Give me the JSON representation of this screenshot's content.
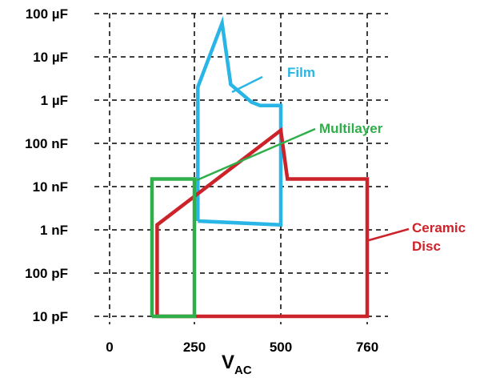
{
  "chart_data": {
    "type": "area",
    "title": "",
    "xlabel": "V",
    "xlabel_subscript": "AC",
    "ylabel": "",
    "y_scale": "log",
    "grid": true,
    "x_ticks": [
      {
        "value": 0,
        "label": "0"
      },
      {
        "value": 250,
        "label": "250"
      },
      {
        "value": 500,
        "label": "500"
      },
      {
        "value": 760,
        "label": "760"
      }
    ],
    "y_ticks": [
      {
        "value": 1e-11,
        "label": "10 pF"
      },
      {
        "value": 1e-10,
        "label": "100 pF"
      },
      {
        "value": 1e-09,
        "label": "1 nF"
      },
      {
        "value": 1e-08,
        "label": "10 nF"
      },
      {
        "value": 1e-07,
        "label": "100 nF"
      },
      {
        "value": 1e-06,
        "label": "1 µF"
      },
      {
        "value": 1e-05,
        "label": "10 µF"
      },
      {
        "value": 0.0001,
        "label": "100 µF"
      }
    ],
    "series": [
      {
        "name": "Film",
        "color": "#29b6e6",
        "points": [
          [
            260,
            1.6e-09
          ],
          [
            260,
            2e-06
          ],
          [
            330,
            6e-05
          ],
          [
            355,
            2.3e-06
          ],
          [
            415,
            9e-07
          ],
          [
            440,
            7.5e-07
          ],
          [
            500,
            7.5e-07
          ],
          [
            500,
            1.3e-09
          ],
          [
            260,
            1.6e-09
          ]
        ]
      },
      {
        "name": "Ceramic Disc",
        "color": "#cc2229",
        "points": [
          [
            140,
            1e-11
          ],
          [
            140,
            1.3e-09
          ],
          [
            500,
            2e-07
          ],
          [
            520,
            1.5e-08
          ],
          [
            760,
            1.5e-08
          ],
          [
            760,
            1e-11
          ],
          [
            140,
            1e-11
          ]
        ]
      },
      {
        "name": "Multilayer",
        "color": "#2fae4a",
        "points": [
          [
            125,
            1e-11
          ],
          [
            125,
            1.5e-08
          ],
          [
            250,
            1.5e-08
          ],
          [
            250,
            1e-11
          ],
          [
            125,
            1e-11
          ]
        ]
      }
    ]
  }
}
